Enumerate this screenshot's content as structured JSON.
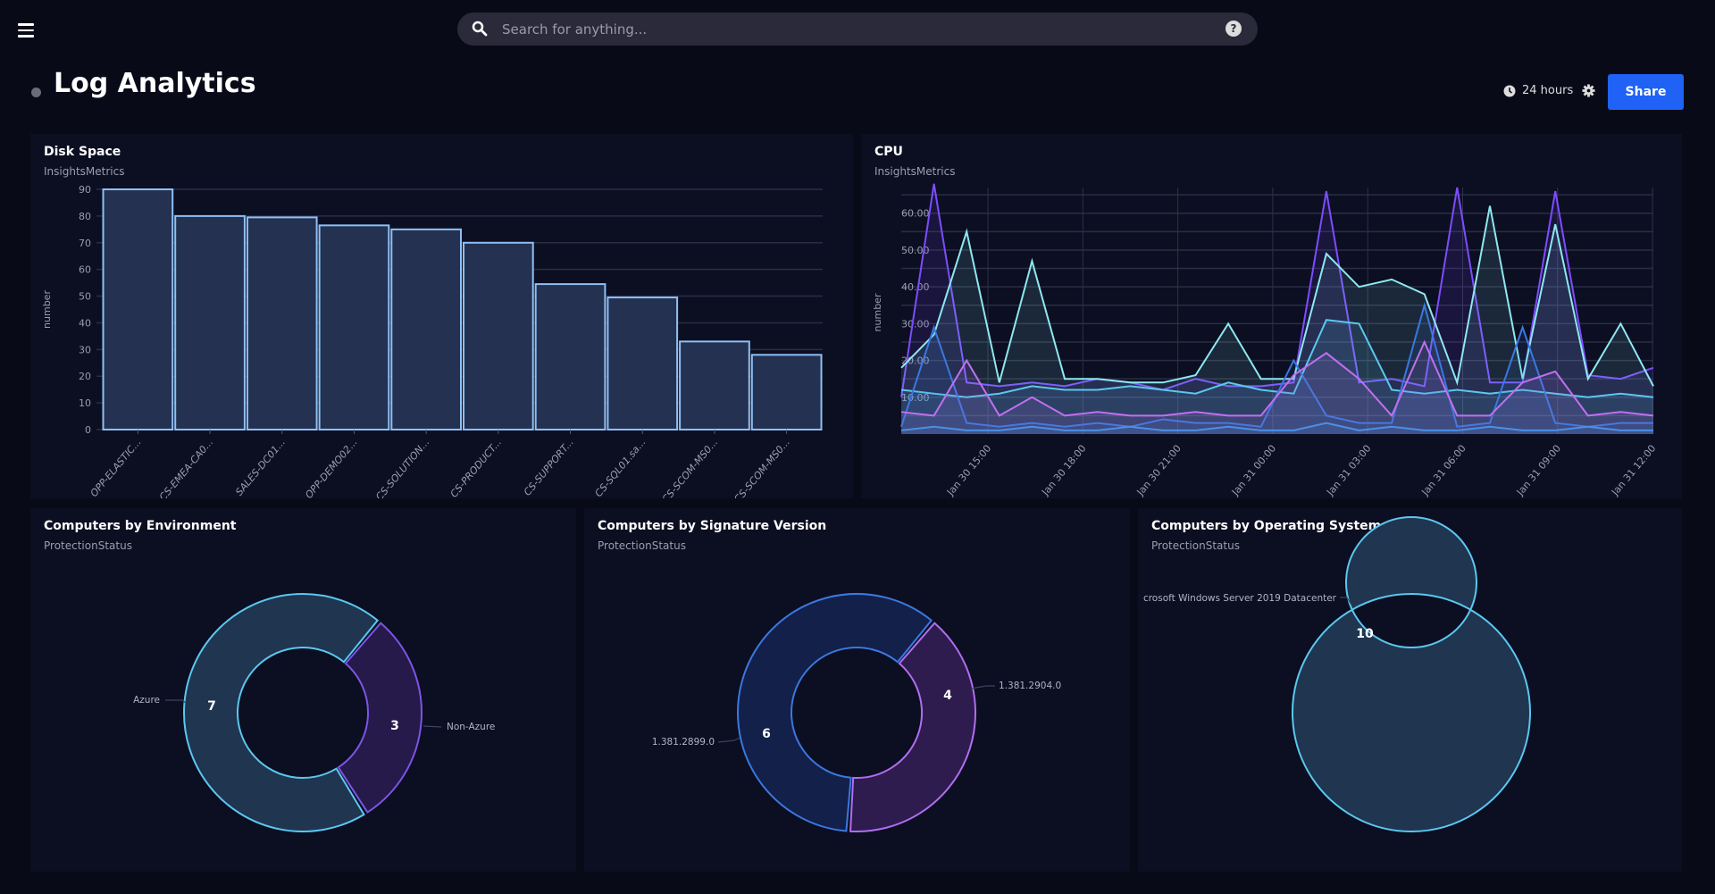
{
  "header": {
    "search_placeholder": "Search for anything...",
    "help_icon": "question-circle-icon",
    "menu_icon": "hamburger-icon"
  },
  "page": {
    "title": "Log Analytics",
    "time_range": "24 hours",
    "share_label": "Share"
  },
  "colors": {
    "background": "#090a18",
    "panel": "#0c0e21",
    "accent": "#1f62f5"
  },
  "panels": {
    "disk": {
      "title": "Disk Space",
      "subtitle": "InsightsMetrics"
    },
    "cpu": {
      "title": "CPU",
      "subtitle": "InsightsMetrics"
    },
    "env": {
      "title": "Computers by Environment",
      "subtitle": "ProtectionStatus"
    },
    "sig": {
      "title": "Computers by Signature Version",
      "subtitle": "ProtectionStatus"
    },
    "os": {
      "title": "Computers by Operating System",
      "subtitle": "ProtectionStatus"
    }
  },
  "chart_data": [
    {
      "type": "bar",
      "ylabel": "number",
      "ylim": [
        0,
        90
      ],
      "yticks": [
        0,
        10,
        20,
        30,
        40,
        50,
        60,
        70,
        80,
        90
      ],
      "grid": true,
      "categories": [
        "OPP-ELASTIC...",
        "CS-EMEA-CA0...",
        "SALES-DC01...",
        "OPP-DEMO02...",
        "CS-SOLUTION...",
        "CS-PRODUCT...",
        "CS-SUPPORT...",
        "CS-SQL01.sa...",
        "CS-SCOM-MS0...",
        "CS-SCOM-MS0..."
      ],
      "values": [
        90,
        80,
        79.5,
        76.5,
        75,
        70,
        54.5,
        49.5,
        33,
        28
      ]
    },
    {
      "type": "line",
      "ylabel": "number",
      "ylim": [
        0,
        66
      ],
      "yticks": [
        "10.00",
        "20.00",
        "30.00",
        "40.00",
        "50.00",
        "60.00"
      ],
      "grid": true,
      "xticks": [
        "Jan 30 15:00",
        "Jan 30 18:00",
        "Jan 30 21:00",
        "Jan 31 00:00",
        "Jan 31 03:00",
        "Jan 31 06:00",
        "Jan 31 09:00",
        "Jan 31 12:00"
      ],
      "x_hours_from_jan30_13": [
        0,
        1,
        2,
        3,
        4,
        5,
        6,
        7,
        8,
        9,
        10,
        11,
        12,
        13,
        14,
        15,
        16,
        17,
        18,
        19,
        20,
        21,
        22,
        23
      ],
      "series": [
        {
          "color": "#7c4dff",
          "values": [
            10,
            68,
            14,
            13,
            14,
            13,
            15,
            14,
            12,
            15,
            13,
            13,
            14,
            66,
            14,
            15,
            13,
            67,
            14,
            14,
            66,
            16,
            15,
            18
          ]
        },
        {
          "color": "#8ee8f0",
          "values": [
            18,
            27,
            55,
            14,
            47,
            15,
            15,
            14,
            14,
            16,
            30,
            15,
            15,
            49,
            40,
            42,
            38,
            14,
            62,
            15,
            57,
            15,
            30,
            13
          ]
        },
        {
          "color": "#5bc8f0",
          "values": [
            12,
            11,
            10,
            11,
            13,
            12,
            12,
            13,
            12,
            11,
            14,
            12,
            11,
            31,
            30,
            12,
            11,
            12,
            11,
            12,
            11,
            10,
            11,
            10
          ]
        },
        {
          "color": "#3a78e0",
          "values": [
            2,
            29,
            3,
            2,
            3,
            2,
            3,
            2,
            4,
            3,
            3,
            2,
            20,
            5,
            3,
            3,
            35,
            2,
            3,
            29,
            3,
            2,
            3,
            3
          ]
        },
        {
          "color": "#c070f0",
          "values": [
            6,
            5,
            20,
            5,
            10,
            5,
            6,
            5,
            5,
            6,
            5,
            5,
            16,
            22,
            15,
            5,
            25,
            5,
            5,
            14,
            17,
            5,
            6,
            5
          ]
        },
        {
          "color": "#4a90e8",
          "values": [
            1,
            2,
            1,
            1,
            2,
            1,
            1,
            2,
            1,
            1,
            2,
            1,
            1,
            3,
            1,
            2,
            1,
            1,
            2,
            1,
            1,
            2,
            1,
            1
          ]
        }
      ]
    },
    {
      "type": "pie",
      "slices": [
        {
          "label": "Azure",
          "value": 7,
          "fill": "#1f3550",
          "stroke": "#5bc8f0"
        },
        {
          "label": "Non-Azure",
          "value": 3,
          "fill": "#251a4a",
          "stroke": "#7b55e6"
        }
      ]
    },
    {
      "type": "pie",
      "slices": [
        {
          "label": "1.381.2899.0",
          "value": 6,
          "fill": "#13204a",
          "stroke": "#3a78e0"
        },
        {
          "label": "1.381.2904.0",
          "value": 4,
          "fill": "#2e1c4e",
          "stroke": "#b06ef0"
        }
      ]
    },
    {
      "type": "pie",
      "slices": [
        {
          "label": "crosoft Windows Server 2019 Datacenter",
          "value": 10,
          "fill": "#1f3550",
          "stroke": "#5bc8f0"
        }
      ]
    }
  ]
}
